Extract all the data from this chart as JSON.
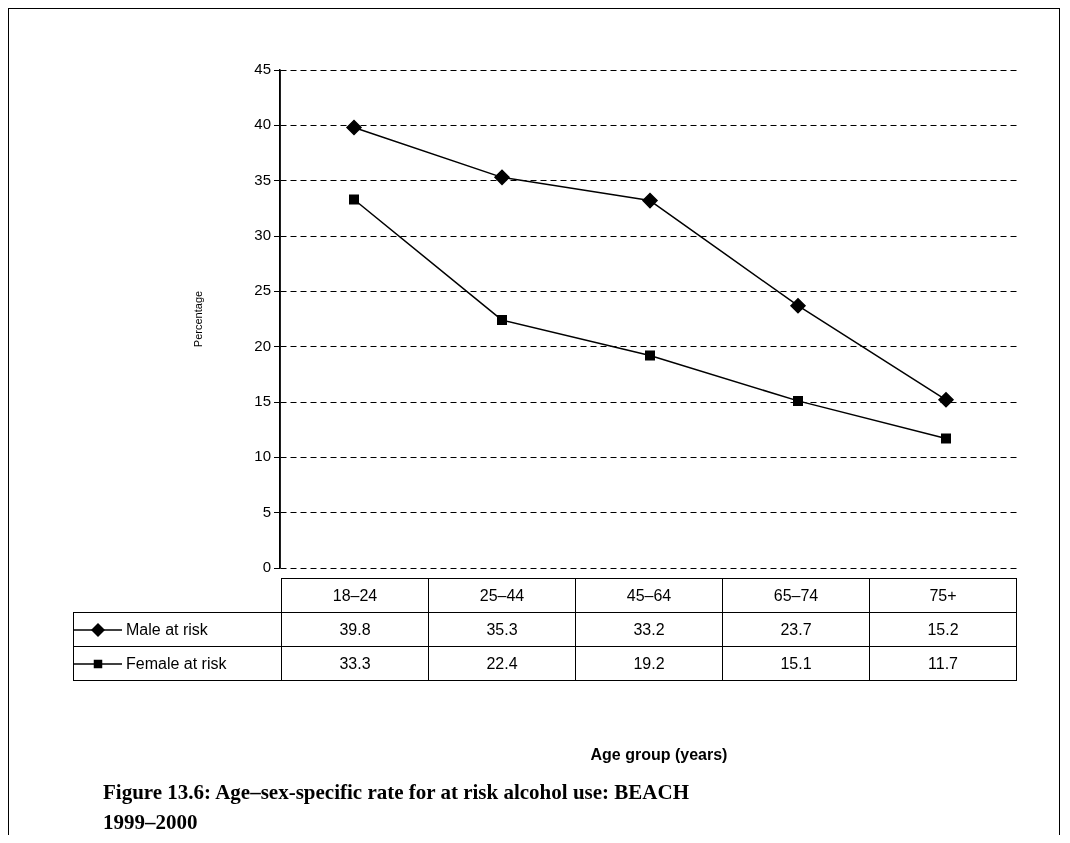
{
  "chart_data": {
    "type": "line",
    "title": "Figure 13.6: Age–sex-specific rate for at risk alcohol use: BEACH 1999–2000",
    "annotations": [
      "Age group (years)"
    ],
    "ylabel": "Percentage",
    "categories": [
      "18–24",
      "25–44",
      "45–64",
      "65–74",
      "75+"
    ],
    "series": [
      {
        "name": "Male at risk",
        "color": "#000000",
        "marker": "diamond",
        "values": [
          39.8,
          35.3,
          33.2,
          23.7,
          15.2
        ]
      },
      {
        "name": "Female at risk",
        "color": "#000000",
        "marker": "square",
        "values": [
          33.3,
          22.4,
          19.2,
          15.1,
          11.7
        ]
      }
    ],
    "ylim": [
      0,
      45
    ],
    "yticks": [
      0,
      5,
      10,
      15,
      20,
      25,
      30,
      35,
      40,
      45
    ],
    "grid": "y",
    "line_style": "solid",
    "legend": "bottom left",
    "data_labels": true
  }
}
